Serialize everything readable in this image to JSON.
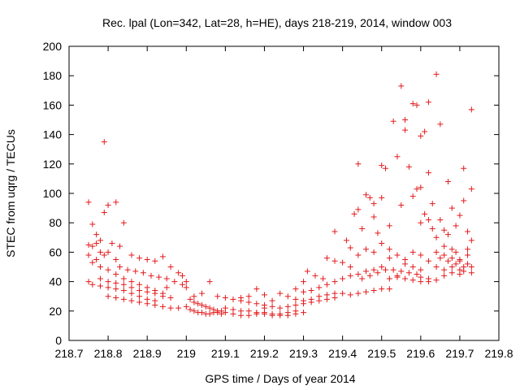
{
  "chart_data": {
    "type": "scatter",
    "title": "Rec. lpal (Lon=342, Lat=28, h=HE), days 218-219, 2014, window 003",
    "xlabel": "GPS time / Days of year 2014",
    "ylabel": "STEC from uqrg / TECUs",
    "xlim": [
      218.7,
      219.8
    ],
    "ylim": [
      0,
      200
    ],
    "xticks": [
      "218.7",
      "218.8",
      "218.9",
      "219",
      "219.1",
      "219.2",
      "219.3",
      "219.4",
      "219.5",
      "219.6",
      "219.7",
      "219.8"
    ],
    "yticks": [
      "0",
      "20",
      "40",
      "60",
      "80",
      "100",
      "120",
      "140",
      "160",
      "180",
      "200"
    ],
    "grid": false,
    "legend": "none",
    "marker": "plus",
    "color": "#e41a1c",
    "series": [
      {
        "points": [
          [
            218.75,
            94
          ],
          [
            218.76,
            79
          ],
          [
            218.77,
            72
          ],
          [
            218.78,
            68
          ],
          [
            218.79,
            87
          ],
          [
            218.79,
            135
          ],
          [
            218.8,
            92
          ],
          [
            218.82,
            94
          ],
          [
            218.84,
            80
          ],
          [
            218.83,
            64
          ],
          [
            218.75,
            65
          ],
          [
            218.76,
            64
          ],
          [
            218.77,
            66
          ],
          [
            218.78,
            60
          ],
          [
            218.79,
            58
          ],
          [
            218.8,
            60
          ],
          [
            218.81,
            66
          ],
          [
            218.82,
            55
          ],
          [
            218.75,
            58
          ],
          [
            218.77,
            55
          ],
          [
            218.76,
            53
          ],
          [
            218.78,
            50
          ],
          [
            218.8,
            48
          ],
          [
            218.82,
            45
          ],
          [
            218.84,
            42
          ],
          [
            218.86,
            40
          ],
          [
            218.88,
            38
          ],
          [
            218.9,
            36
          ],
          [
            218.92,
            34
          ],
          [
            218.94,
            32
          ],
          [
            218.75,
            40
          ],
          [
            218.76,
            38
          ],
          [
            218.78,
            37
          ],
          [
            218.8,
            36
          ],
          [
            218.82,
            35
          ],
          [
            218.84,
            34
          ],
          [
            218.86,
            32
          ],
          [
            218.88,
            30
          ],
          [
            218.9,
            28
          ],
          [
            218.92,
            27
          ],
          [
            218.78,
            42
          ],
          [
            218.8,
            40
          ],
          [
            218.82,
            39
          ],
          [
            218.84,
            38
          ],
          [
            218.86,
            36
          ],
          [
            218.88,
            34
          ],
          [
            218.9,
            33
          ],
          [
            218.92,
            32
          ],
          [
            218.94,
            30
          ],
          [
            218.96,
            29
          ],
          [
            218.83,
            50
          ],
          [
            218.85,
            48
          ],
          [
            218.87,
            47
          ],
          [
            218.89,
            46
          ],
          [
            218.91,
            44
          ],
          [
            218.93,
            43
          ],
          [
            218.95,
            42
          ],
          [
            218.97,
            40
          ],
          [
            218.99,
            38
          ],
          [
            219.0,
            36
          ],
          [
            218.86,
            58
          ],
          [
            218.88,
            56
          ],
          [
            218.9,
            55
          ],
          [
            218.92,
            54
          ],
          [
            218.94,
            57
          ],
          [
            218.96,
            50
          ],
          [
            218.98,
            46
          ],
          [
            218.99,
            44
          ],
          [
            219.0,
            40
          ],
          [
            218.95,
            36
          ],
          [
            218.8,
            30
          ],
          [
            218.82,
            29
          ],
          [
            218.84,
            28
          ],
          [
            218.86,
            27
          ],
          [
            218.88,
            26
          ],
          [
            218.9,
            25
          ],
          [
            218.92,
            24
          ],
          [
            218.94,
            23
          ],
          [
            218.96,
            22
          ],
          [
            218.98,
            22
          ],
          [
            219.0,
            23
          ],
          [
            219.01,
            28
          ],
          [
            219.02,
            26
          ],
          [
            219.03,
            25
          ],
          [
            219.04,
            24
          ],
          [
            219.05,
            23
          ],
          [
            219.06,
            22
          ],
          [
            219.07,
            21
          ],
          [
            219.08,
            20
          ],
          [
            219.09,
            20
          ],
          [
            219.01,
            21
          ],
          [
            219.02,
            20
          ],
          [
            219.03,
            19
          ],
          [
            219.04,
            19
          ],
          [
            219.05,
            18
          ],
          [
            219.06,
            18
          ],
          [
            219.07,
            19
          ],
          [
            219.08,
            19
          ],
          [
            219.09,
            18
          ],
          [
            219.1,
            19
          ],
          [
            219.02,
            30
          ],
          [
            219.04,
            32
          ],
          [
            219.06,
            40
          ],
          [
            219.08,
            30
          ],
          [
            219.1,
            29
          ],
          [
            219.12,
            28
          ],
          [
            219.14,
            27
          ],
          [
            219.16,
            26
          ],
          [
            219.18,
            25
          ],
          [
            219.2,
            24
          ],
          [
            219.1,
            22
          ],
          [
            219.12,
            21
          ],
          [
            219.14,
            20
          ],
          [
            219.16,
            20
          ],
          [
            219.18,
            19
          ],
          [
            219.2,
            19
          ],
          [
            219.22,
            18
          ],
          [
            219.24,
            18
          ],
          [
            219.26,
            19
          ],
          [
            219.28,
            20
          ],
          [
            219.12,
            18
          ],
          [
            219.14,
            17
          ],
          [
            219.16,
            17
          ],
          [
            219.18,
            18
          ],
          [
            219.2,
            18
          ],
          [
            219.22,
            17
          ],
          [
            219.24,
            17
          ],
          [
            219.26,
            17
          ],
          [
            219.28,
            18
          ],
          [
            219.3,
            19
          ],
          [
            219.14,
            29
          ],
          [
            219.16,
            30
          ],
          [
            219.18,
            35
          ],
          [
            219.2,
            31
          ],
          [
            219.22,
            27
          ],
          [
            219.24,
            32
          ],
          [
            219.26,
            30
          ],
          [
            219.28,
            28
          ],
          [
            219.3,
            27
          ],
          [
            219.32,
            28
          ],
          [
            219.2,
            22
          ],
          [
            219.22,
            23
          ],
          [
            219.24,
            22
          ],
          [
            219.26,
            23
          ],
          [
            219.28,
            24
          ],
          [
            219.3,
            25
          ],
          [
            219.32,
            26
          ],
          [
            219.34,
            27
          ],
          [
            219.36,
            28
          ],
          [
            219.38,
            29
          ],
          [
            219.28,
            35
          ],
          [
            219.3,
            40
          ],
          [
            219.31,
            47
          ],
          [
            219.33,
            44
          ],
          [
            219.35,
            42
          ],
          [
            219.36,
            56
          ],
          [
            219.38,
            54
          ],
          [
            219.4,
            53
          ],
          [
            219.38,
            74
          ],
          [
            219.41,
            68
          ],
          [
            219.3,
            33
          ],
          [
            219.32,
            34
          ],
          [
            219.34,
            36
          ],
          [
            219.36,
            38
          ],
          [
            219.38,
            40
          ],
          [
            219.4,
            42
          ],
          [
            219.42,
            44
          ],
          [
            219.44,
            45
          ],
          [
            219.46,
            47
          ],
          [
            219.48,
            48
          ],
          [
            219.34,
            30
          ],
          [
            219.36,
            31
          ],
          [
            219.38,
            32
          ],
          [
            219.4,
            32
          ],
          [
            219.42,
            31
          ],
          [
            219.44,
            32
          ],
          [
            219.46,
            33
          ],
          [
            219.48,
            34
          ],
          [
            219.5,
            35
          ],
          [
            219.52,
            35
          ],
          [
            219.42,
            63
          ],
          [
            219.43,
            86
          ],
          [
            219.44,
            89
          ],
          [
            219.44,
            120
          ],
          [
            219.45,
            76
          ],
          [
            219.46,
            99
          ],
          [
            219.47,
            97
          ],
          [
            219.48,
            93
          ],
          [
            219.48,
            84
          ],
          [
            219.49,
            73
          ],
          [
            219.42,
            50
          ],
          [
            219.44,
            58
          ],
          [
            219.46,
            62
          ],
          [
            219.48,
            60
          ],
          [
            219.5,
            66
          ],
          [
            219.52,
            62
          ],
          [
            219.54,
            58
          ],
          [
            219.56,
            55
          ],
          [
            219.58,
            60
          ],
          [
            219.6,
            58
          ],
          [
            219.45,
            42
          ],
          [
            219.47,
            44
          ],
          [
            219.49,
            46
          ],
          [
            219.51,
            48
          ],
          [
            219.53,
            48
          ],
          [
            219.55,
            47
          ],
          [
            219.57,
            46
          ],
          [
            219.59,
            45
          ],
          [
            219.6,
            43
          ],
          [
            219.62,
            42
          ],
          [
            219.5,
            119
          ],
          [
            219.51,
            117
          ],
          [
            219.52,
            78
          ],
          [
            219.53,
            149
          ],
          [
            219.54,
            125
          ],
          [
            219.55,
            173
          ],
          [
            219.56,
            150
          ],
          [
            219.56,
            143
          ],
          [
            219.57,
            118
          ],
          [
            219.58,
            161
          ],
          [
            219.59,
            160
          ],
          [
            219.6,
            139
          ],
          [
            219.61,
            142
          ],
          [
            219.62,
            162
          ],
          [
            219.62,
            114
          ],
          [
            219.59,
            103
          ],
          [
            219.6,
            104
          ],
          [
            219.61,
            86
          ],
          [
            219.62,
            82
          ],
          [
            219.63,
            76
          ],
          [
            219.5,
            50
          ],
          [
            219.52,
            56
          ],
          [
            219.54,
            44
          ],
          [
            219.56,
            52
          ],
          [
            219.58,
            50
          ],
          [
            219.6,
            48
          ],
          [
            219.62,
            54
          ],
          [
            219.64,
            50
          ],
          [
            219.66,
            48
          ],
          [
            219.68,
            50
          ],
          [
            219.52,
            42
          ],
          [
            219.54,
            43
          ],
          [
            219.56,
            42
          ],
          [
            219.58,
            41
          ],
          [
            219.6,
            40
          ],
          [
            219.62,
            40
          ],
          [
            219.64,
            41
          ],
          [
            219.66,
            44
          ],
          [
            219.68,
            46
          ],
          [
            219.7,
            45
          ],
          [
            219.5,
            97
          ],
          [
            219.55,
            92
          ],
          [
            219.58,
            98
          ],
          [
            219.6,
            80
          ],
          [
            219.64,
            181
          ],
          [
            219.65,
            147
          ],
          [
            219.65,
            82
          ],
          [
            219.66,
            75
          ],
          [
            219.67,
            108
          ],
          [
            219.68,
            90
          ],
          [
            219.63,
            93
          ],
          [
            219.64,
            70
          ],
          [
            219.66,
            64
          ],
          [
            219.67,
            72
          ],
          [
            219.68,
            62
          ],
          [
            219.69,
            78
          ],
          [
            219.7,
            85
          ],
          [
            219.71,
            117
          ],
          [
            219.71,
            95
          ],
          [
            219.72,
            74
          ],
          [
            219.73,
            157
          ],
          [
            219.73,
            103
          ],
          [
            219.72,
            58
          ],
          [
            219.73,
            50
          ],
          [
            219.73,
            68
          ],
          [
            219.7,
            55
          ],
          [
            219.69,
            60
          ],
          [
            219.72,
            62
          ],
          [
            219.7,
            48
          ],
          [
            219.71,
            47
          ],
          [
            219.64,
            60
          ],
          [
            219.65,
            56
          ],
          [
            219.66,
            58
          ],
          [
            219.67,
            54
          ],
          [
            219.68,
            56
          ],
          [
            219.69,
            52
          ],
          [
            219.7,
            54
          ],
          [
            219.71,
            50
          ],
          [
            219.72,
            52
          ],
          [
            219.73,
            46
          ]
        ]
      }
    ]
  }
}
